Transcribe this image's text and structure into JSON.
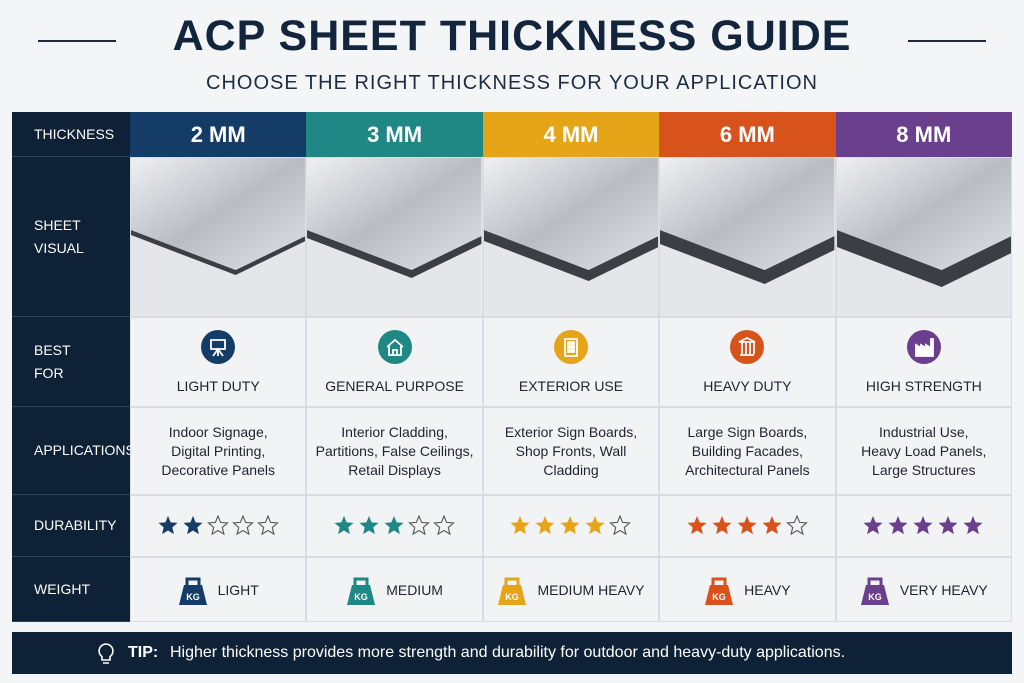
{
  "header": {
    "title": "ACP SHEET THICKNESS GUIDE",
    "subtitle": "CHOOSE THE RIGHT THICKNESS FOR YOUR APPLICATION"
  },
  "row_labels": [
    "THICKNESS",
    "SHEET VISUAL",
    "BEST FOR",
    "APPLICATIONS",
    "DURABILITY",
    "WEIGHT"
  ],
  "durability_scale": 5,
  "kg_label": "KG",
  "columns": [
    {
      "thickness": "2 MM",
      "color": "#143c66",
      "best_for": "LIGHT DUTY",
      "applications": [
        "Indoor Signage,",
        "Digital Printing,",
        "Decorative Panels"
      ],
      "durability": 2,
      "weight": "LIGHT"
    },
    {
      "thickness": "3 MM",
      "color": "#1f8784",
      "best_for": "GENERAL PURPOSE",
      "applications": [
        "Interior Cladding,",
        "Partitions, False Ceilings,",
        "Retail Displays"
      ],
      "durability": 3,
      "weight": "MEDIUM"
    },
    {
      "thickness": "4 MM",
      "color": "#e6a419",
      "best_for": "EXTERIOR USE",
      "applications": [
        "Exterior Sign Boards,",
        "Shop Fronts, Wall",
        "Cladding"
      ],
      "durability": 4,
      "weight": "MEDIUM HEAVY"
    },
    {
      "thickness": "6 MM",
      "color": "#d8531c",
      "best_for": "HEAVY DUTY",
      "applications": [
        "Large Sign Boards,",
        "Building Facades,",
        "Architectural Panels"
      ],
      "durability": 4,
      "weight": "HEAVY"
    },
    {
      "thickness": "8 MM",
      "color": "#6a3f8e",
      "best_for": "HIGH STRENGTH",
      "applications": [
        "Industrial Use,",
        "Heavy Load Panels,",
        "Large Structures"
      ],
      "durability": 5,
      "weight": "VERY HEAVY"
    }
  ],
  "tip": {
    "label": "TIP:",
    "text": "Higher thickness provides more strength and durability for outdoor and heavy-duty applications."
  }
}
